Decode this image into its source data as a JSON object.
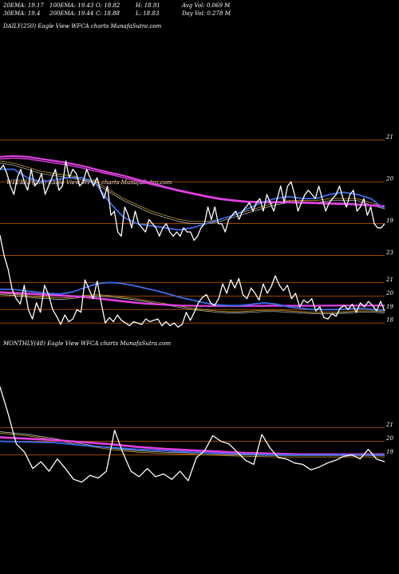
{
  "header": {
    "ema20": "20EMA: 19.17",
    "ema30": "30EMA: 19.4",
    "ema100": "100EMA: 19.43",
    "ema200": "200EMA: 19.44",
    "high": "H: 18.91",
    "open": "O: 18.82",
    "close": "C: 18.88",
    "low": "L: 18.83",
    "avg_vol": "Avg Vol: 0.069  M",
    "day_vol": "Day Vol: 0.278  M"
  },
  "panels": {
    "daily": "DAILY(250) Eagle  View  WFCA charts MunafaSutra.com",
    "weekly": "WEEKLY(250) Eagle  View  WFCA charts MunafaSutra.com",
    "monthly": "MONTHLY(48) Eagle  View  WFCA charts MunafaSutra.com"
  },
  "colors": {
    "price": "#ffffff",
    "ema_short": "#3a6df0",
    "ema_long": "#e040e0",
    "ma_thin": "#c8a020",
    "ma_thin2": "#d0d0d0",
    "level_line": "#9a4a00"
  },
  "chart_data": [
    {
      "type": "line",
      "name": "daily",
      "ylim": [
        18.4,
        21.3
      ],
      "ticks": [
        {
          "value": 21,
          "label": "21"
        },
        {
          "value": 20,
          "label": "20"
        },
        {
          "value": 19,
          "label": "19"
        }
      ],
      "series": [
        {
          "role": "price",
          "values": [
            20.3,
            20.4,
            20.2,
            19.9,
            19.7,
            20.1,
            20.3,
            20.0,
            19.8,
            20.3,
            19.9,
            20.0,
            20.2,
            19.7,
            19.9,
            20.1,
            20.3,
            19.8,
            19.9,
            20.5,
            20.1,
            20.3,
            20.2,
            19.9,
            20.0,
            20.3,
            20.1,
            19.9,
            20.1,
            19.8,
            19.6,
            19.9,
            19.2,
            19.3,
            18.8,
            18.7,
            19.4,
            19.2,
            18.9,
            19.3,
            19.0,
            18.9,
            18.8,
            19.1,
            19.0,
            18.9,
            18.7,
            18.9,
            19.0,
            18.8,
            18.7,
            18.8,
            18.7,
            18.9,
            18.8,
            18.8,
            18.6,
            18.7,
            18.9,
            19.0,
            19.4,
            19.1,
            19.4,
            19.0,
            19.0,
            18.8,
            19.1,
            19.2,
            19.3,
            19.1,
            19.3,
            19.4,
            19.5,
            19.3,
            19.5,
            19.6,
            19.3,
            19.7,
            19.5,
            19.3,
            19.6,
            19.9,
            19.5,
            19.9,
            20.0,
            19.7,
            19.3,
            19.5,
            19.7,
            19.8,
            19.7,
            19.6,
            19.9,
            19.6,
            19.3,
            19.5,
            19.6,
            19.7,
            19.9,
            19.6,
            19.4,
            19.7,
            19.8,
            19.3,
            19.4,
            19.6,
            19.2,
            19.4,
            19.0,
            18.9,
            18.9,
            19.0
          ]
        },
        {
          "role": "ema_long_a",
          "values": [
            20.6,
            20.62,
            20.6,
            20.55,
            20.5,
            20.45,
            20.38,
            20.3,
            20.22,
            20.15,
            20.06,
            19.97,
            19.88,
            19.8,
            19.73,
            19.66,
            19.6,
            19.56,
            19.53,
            19.52,
            19.52,
            19.52,
            19.51,
            19.5,
            19.49,
            19.48,
            19.46,
            19.44,
            19.42
          ]
        },
        {
          "role": "ema_long_b",
          "values": [
            20.55,
            20.57,
            20.55,
            20.5,
            20.45,
            20.4,
            20.33,
            20.25,
            20.18,
            20.1,
            20.02,
            19.94,
            19.86,
            19.78,
            19.71,
            19.64,
            19.58,
            19.54,
            19.51,
            19.5,
            19.5,
            19.5,
            19.49,
            19.48,
            19.47,
            19.46,
            19.45,
            19.43,
            19.4
          ]
        },
        {
          "role": "ema_short",
          "values": [
            20.3,
            20.3,
            20.1,
            20.0,
            20.05,
            20.1,
            20.1,
            19.95,
            19.5,
            19.15,
            19.0,
            18.95,
            18.9,
            18.85,
            18.9,
            19.0,
            19.1,
            19.2,
            19.35,
            19.5,
            19.6,
            19.65,
            19.6,
            19.6,
            19.7,
            19.75,
            19.7,
            19.6,
            19.35
          ]
        },
        {
          "role": "ma_thin",
          "values": [
            20.5,
            20.45,
            20.35,
            20.25,
            20.2,
            20.15,
            20.1,
            20.0,
            19.8,
            19.6,
            19.45,
            19.3,
            19.2,
            19.1,
            19.05,
            19.05,
            19.1,
            19.2,
            19.3,
            19.4,
            19.5,
            19.55,
            19.55,
            19.55,
            19.6,
            19.6,
            19.6,
            19.5,
            19.4
          ]
        },
        {
          "role": "ma_thin2",
          "values": [
            20.45,
            20.4,
            20.3,
            20.2,
            20.15,
            20.1,
            20.05,
            19.95,
            19.75,
            19.55,
            19.4,
            19.25,
            19.15,
            19.05,
            19.0,
            19.0,
            19.05,
            19.15,
            19.25,
            19.35,
            19.45,
            19.5,
            19.5,
            19.5,
            19.55,
            19.55,
            19.55,
            19.45,
            19.35
          ]
        }
      ]
    },
    {
      "type": "line",
      "name": "weekly",
      "ylim": [
        17.6,
        24.8
      ],
      "ticks": [
        {
          "value": 23,
          "label": "23"
        },
        {
          "value": 21,
          "label": "21"
        },
        {
          "value": 20,
          "label": "20"
        },
        {
          "value": 19,
          "label": "19"
        },
        {
          "value": 18,
          "label": "18"
        }
      ],
      "series": [
        {
          "role": "price",
          "values": [
            24.5,
            23.0,
            22.0,
            20.5,
            19.8,
            19.4,
            20.8,
            19.0,
            18.3,
            19.5,
            18.8,
            20.8,
            20.1,
            19.0,
            18.5,
            17.9,
            18.6,
            18.1,
            18.3,
            19.0,
            18.8,
            21.2,
            20.5,
            19.8,
            21.1,
            19.5,
            18.0,
            18.4,
            18.1,
            18.6,
            18.2,
            18.0,
            17.8,
            18.1,
            18.0,
            17.9,
            18.3,
            18.1,
            18.2,
            18.3,
            17.8,
            18.1,
            17.8,
            18.0,
            17.7,
            17.9,
            18.8,
            18.2,
            18.8,
            19.5,
            19.9,
            20.1,
            19.5,
            19.3,
            19.8,
            20.9,
            20.2,
            21.2,
            20.6,
            21.3,
            20.1,
            19.8,
            20.6,
            20.2,
            19.7,
            20.9,
            20.2,
            20.7,
            21.5,
            20.8,
            20.4,
            20.8,
            19.8,
            20.2,
            19.2,
            19.7,
            19.5,
            19.8,
            18.9,
            19.2,
            18.4,
            18.3,
            18.7,
            18.5,
            19.1,
            19.3,
            19.0,
            19.4,
            18.8,
            19.5,
            19.2,
            19.6,
            19.3,
            18.9,
            19.6,
            18.9
          ]
        },
        {
          "role": "ema_short",
          "values": [
            20.5,
            20.5,
            20.4,
            20.3,
            20.2,
            20.15,
            20.3,
            20.6,
            20.9,
            21.0,
            20.95,
            20.8,
            20.6,
            20.4,
            20.15,
            19.9,
            19.7,
            19.5,
            19.35,
            19.3,
            19.3,
            19.4,
            19.5,
            19.4,
            19.2,
            19.1,
            19.0,
            19.0,
            19.0,
            19.05,
            19.1,
            19.0,
            18.95
          ]
        },
        {
          "role": "ema_long_a",
          "values": [
            20.3,
            20.25,
            20.2,
            20.15,
            20.1,
            20.05,
            20.0,
            19.95,
            19.85,
            19.75,
            19.65,
            19.55,
            19.45,
            19.4,
            19.35,
            19.3,
            19.28,
            19.27,
            19.27,
            19.27,
            19.27,
            19.27,
            19.28,
            19.28,
            19.28,
            19.28,
            19.28,
            19.29,
            19.3,
            19.3,
            19.3,
            19.3,
            19.3
          ]
        },
        {
          "role": "ema_long_b",
          "values": [
            20.25,
            20.2,
            20.15,
            20.1,
            20.05,
            20.0,
            19.95,
            19.9,
            19.8,
            19.7,
            19.6,
            19.5,
            19.42,
            19.37,
            19.32,
            19.28,
            19.26,
            19.25,
            19.25,
            19.25,
            19.25,
            19.25,
            19.26,
            19.26,
            19.26,
            19.26,
            19.26,
            19.27,
            19.28,
            19.28,
            19.28,
            19.28,
            19.28
          ]
        },
        {
          "role": "ma_thin",
          "values": [
            20.2,
            20.15,
            20.05,
            19.95,
            19.9,
            19.85,
            19.9,
            20.05,
            20.1,
            20.05,
            19.95,
            19.85,
            19.7,
            19.55,
            19.4,
            19.25,
            19.1,
            19.0,
            18.9,
            18.85,
            18.85,
            18.9,
            18.95,
            18.95,
            18.9,
            18.85,
            18.8,
            18.8,
            18.8,
            18.85,
            18.9,
            18.9,
            18.85
          ]
        },
        {
          "role": "ma_thin2",
          "values": [
            20.1,
            20.05,
            19.95,
            19.85,
            19.8,
            19.75,
            19.8,
            19.95,
            20.0,
            19.95,
            19.85,
            19.75,
            19.6,
            19.45,
            19.3,
            19.15,
            19.0,
            18.9,
            18.8,
            18.75,
            18.75,
            18.8,
            18.85,
            18.85,
            18.8,
            18.75,
            18.7,
            18.7,
            18.7,
            18.75,
            18.8,
            18.8,
            18.75
          ]
        }
      ]
    },
    {
      "type": "line",
      "name": "monthly",
      "ylim": [
        16.4,
        24.3
      ],
      "ticks": [
        {
          "value": 21,
          "label": "21"
        },
        {
          "value": 20,
          "label": "20"
        },
        {
          "value": 19,
          "label": "19"
        }
      ],
      "series": [
        {
          "role": "price",
          "values": [
            24.0,
            22.0,
            19.8,
            19.2,
            18.0,
            18.5,
            17.8,
            18.7,
            18.0,
            17.2,
            17.0,
            17.5,
            17.3,
            17.8,
            20.8,
            19.2,
            17.8,
            17.4,
            18.0,
            17.4,
            17.6,
            17.2,
            17.8,
            17.1,
            18.8,
            19.3,
            20.4,
            20.0,
            19.8,
            19.2,
            18.6,
            18.3,
            20.5,
            19.5,
            18.8,
            18.7,
            18.4,
            18.3,
            17.9,
            18.1,
            18.4,
            18.6,
            18.9,
            19.0,
            18.7,
            19.4,
            18.7,
            18.5
          ]
        },
        {
          "role": "ema_short",
          "values": [
            20.0,
            19.95,
            19.9,
            19.7,
            19.55,
            19.4,
            19.3,
            19.2,
            19.1,
            19.05,
            19.0,
            19.0,
            19.0,
            19.0,
            19.0
          ]
        },
        {
          "role": "ema_long_a",
          "values": [
            20.3,
            20.2,
            20.1,
            19.95,
            19.8,
            19.6,
            19.45,
            19.35,
            19.25,
            19.15,
            19.1,
            19.05,
            19.05,
            19.05,
            19.05
          ]
        },
        {
          "role": "ema_long_b",
          "values": [
            20.25,
            20.15,
            20.05,
            19.9,
            19.75,
            19.55,
            19.4,
            19.3,
            19.2,
            19.12,
            19.07,
            19.02,
            19.02,
            19.02,
            19.02
          ]
        },
        {
          "role": "ma_thin",
          "values": [
            20.6,
            20.4,
            20.1,
            19.7,
            19.4,
            19.2,
            19.1,
            19.05,
            18.95,
            18.9,
            18.85,
            18.85,
            18.85,
            18.85,
            18.85
          ]
        },
        {
          "role": "ma_thin2",
          "values": [
            20.7,
            20.5,
            20.2,
            19.8,
            19.5,
            19.3,
            19.2,
            19.15,
            19.05,
            19.0,
            18.95,
            18.95,
            18.95,
            18.95,
            18.95
          ]
        }
      ]
    }
  ]
}
